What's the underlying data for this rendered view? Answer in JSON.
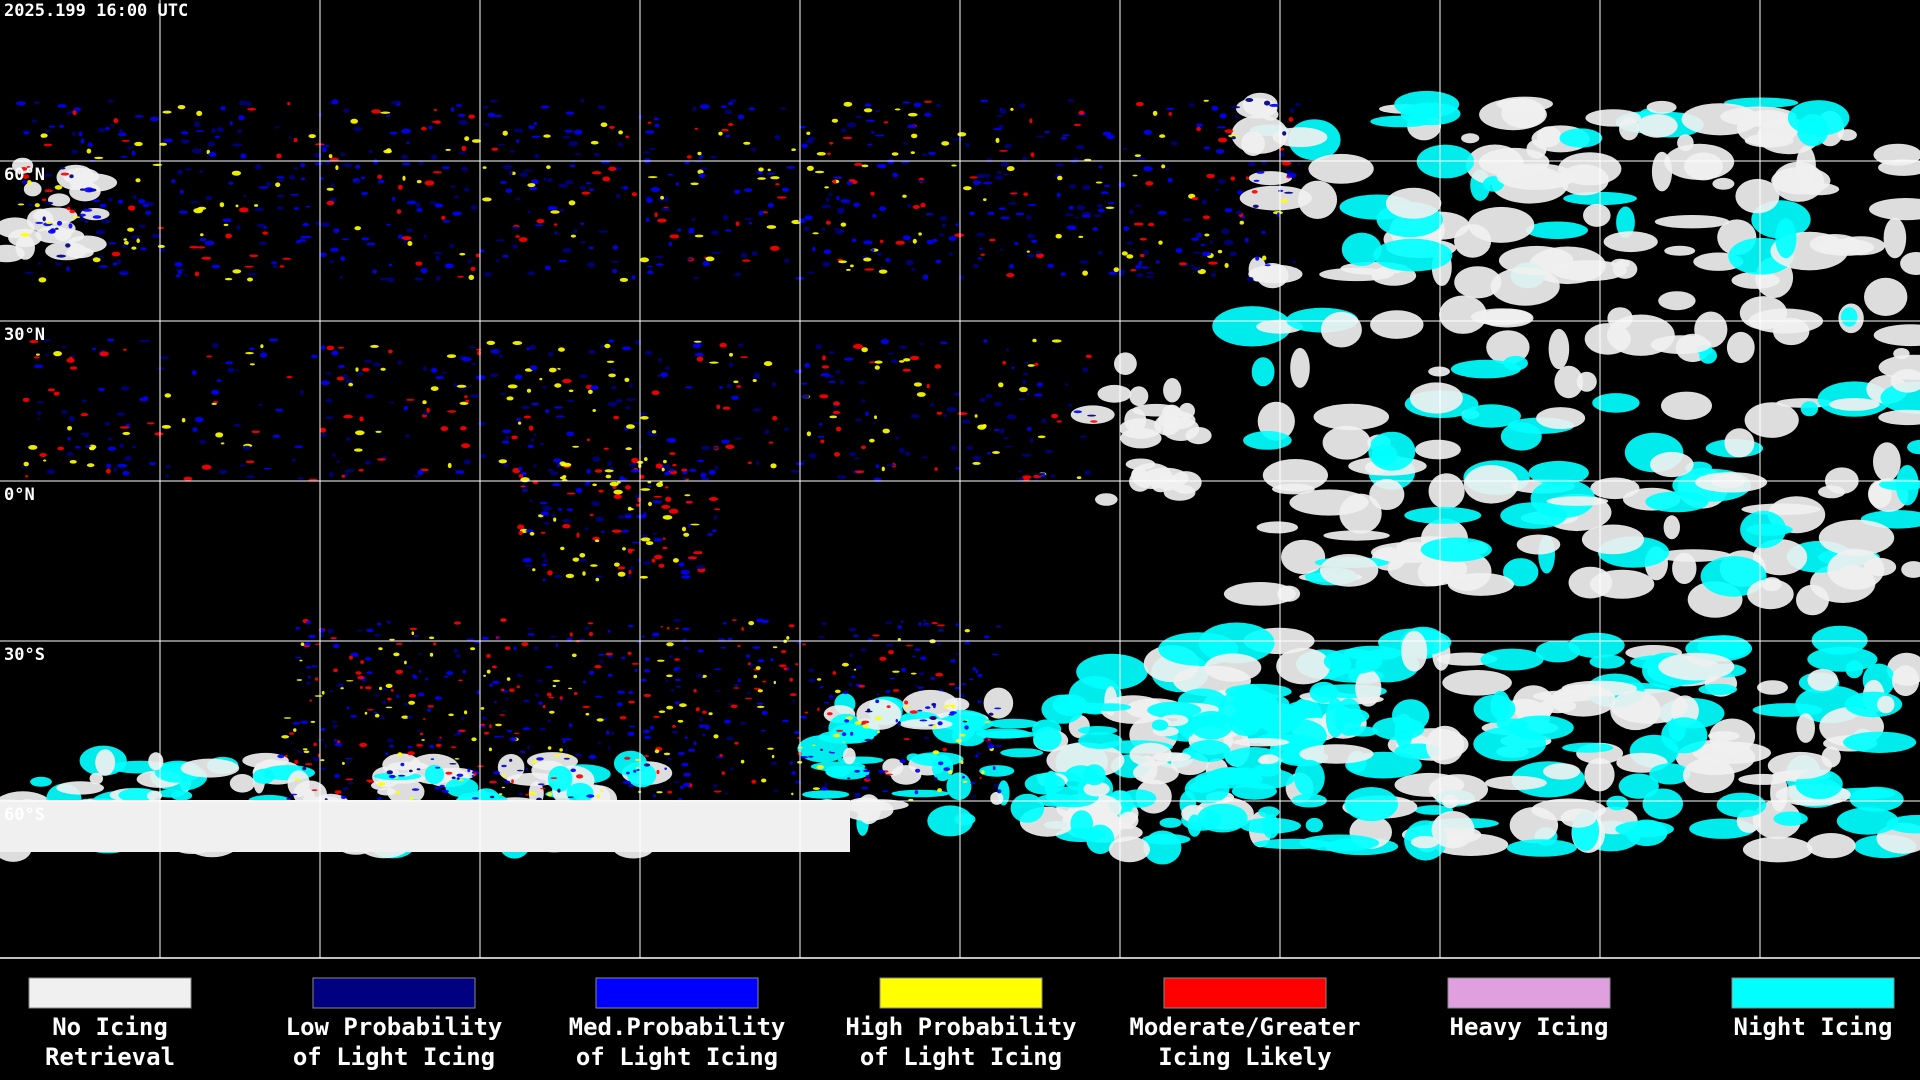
{
  "map": {
    "timestamp": "2025.199 16:00 UTC",
    "lat_labels": [
      "60°N",
      "30°N",
      "0°N",
      "30°S",
      "60°S"
    ]
  },
  "legend": [
    {
      "lines": [
        "No Icing",
        "Retrieval"
      ],
      "color": "#f0f0f0"
    },
    {
      "lines": [
        "Low Probability",
        "of Light Icing"
      ],
      "color": "#000080"
    },
    {
      "lines": [
        "Med.Probability",
        "of Light Icing"
      ],
      "color": "#0000ff"
    },
    {
      "lines": [
        "High Probability",
        "of Light Icing"
      ],
      "color": "#ffff00"
    },
    {
      "lines": [
        "Moderate/Greater",
        "Icing Likely"
      ],
      "color": "#ff0000"
    },
    {
      "lines": [
        "Heavy Icing"
      ],
      "color": "#e0a0e0"
    },
    {
      "lines": [
        "Night Icing"
      ],
      "color": "#00ffff"
    }
  ]
}
